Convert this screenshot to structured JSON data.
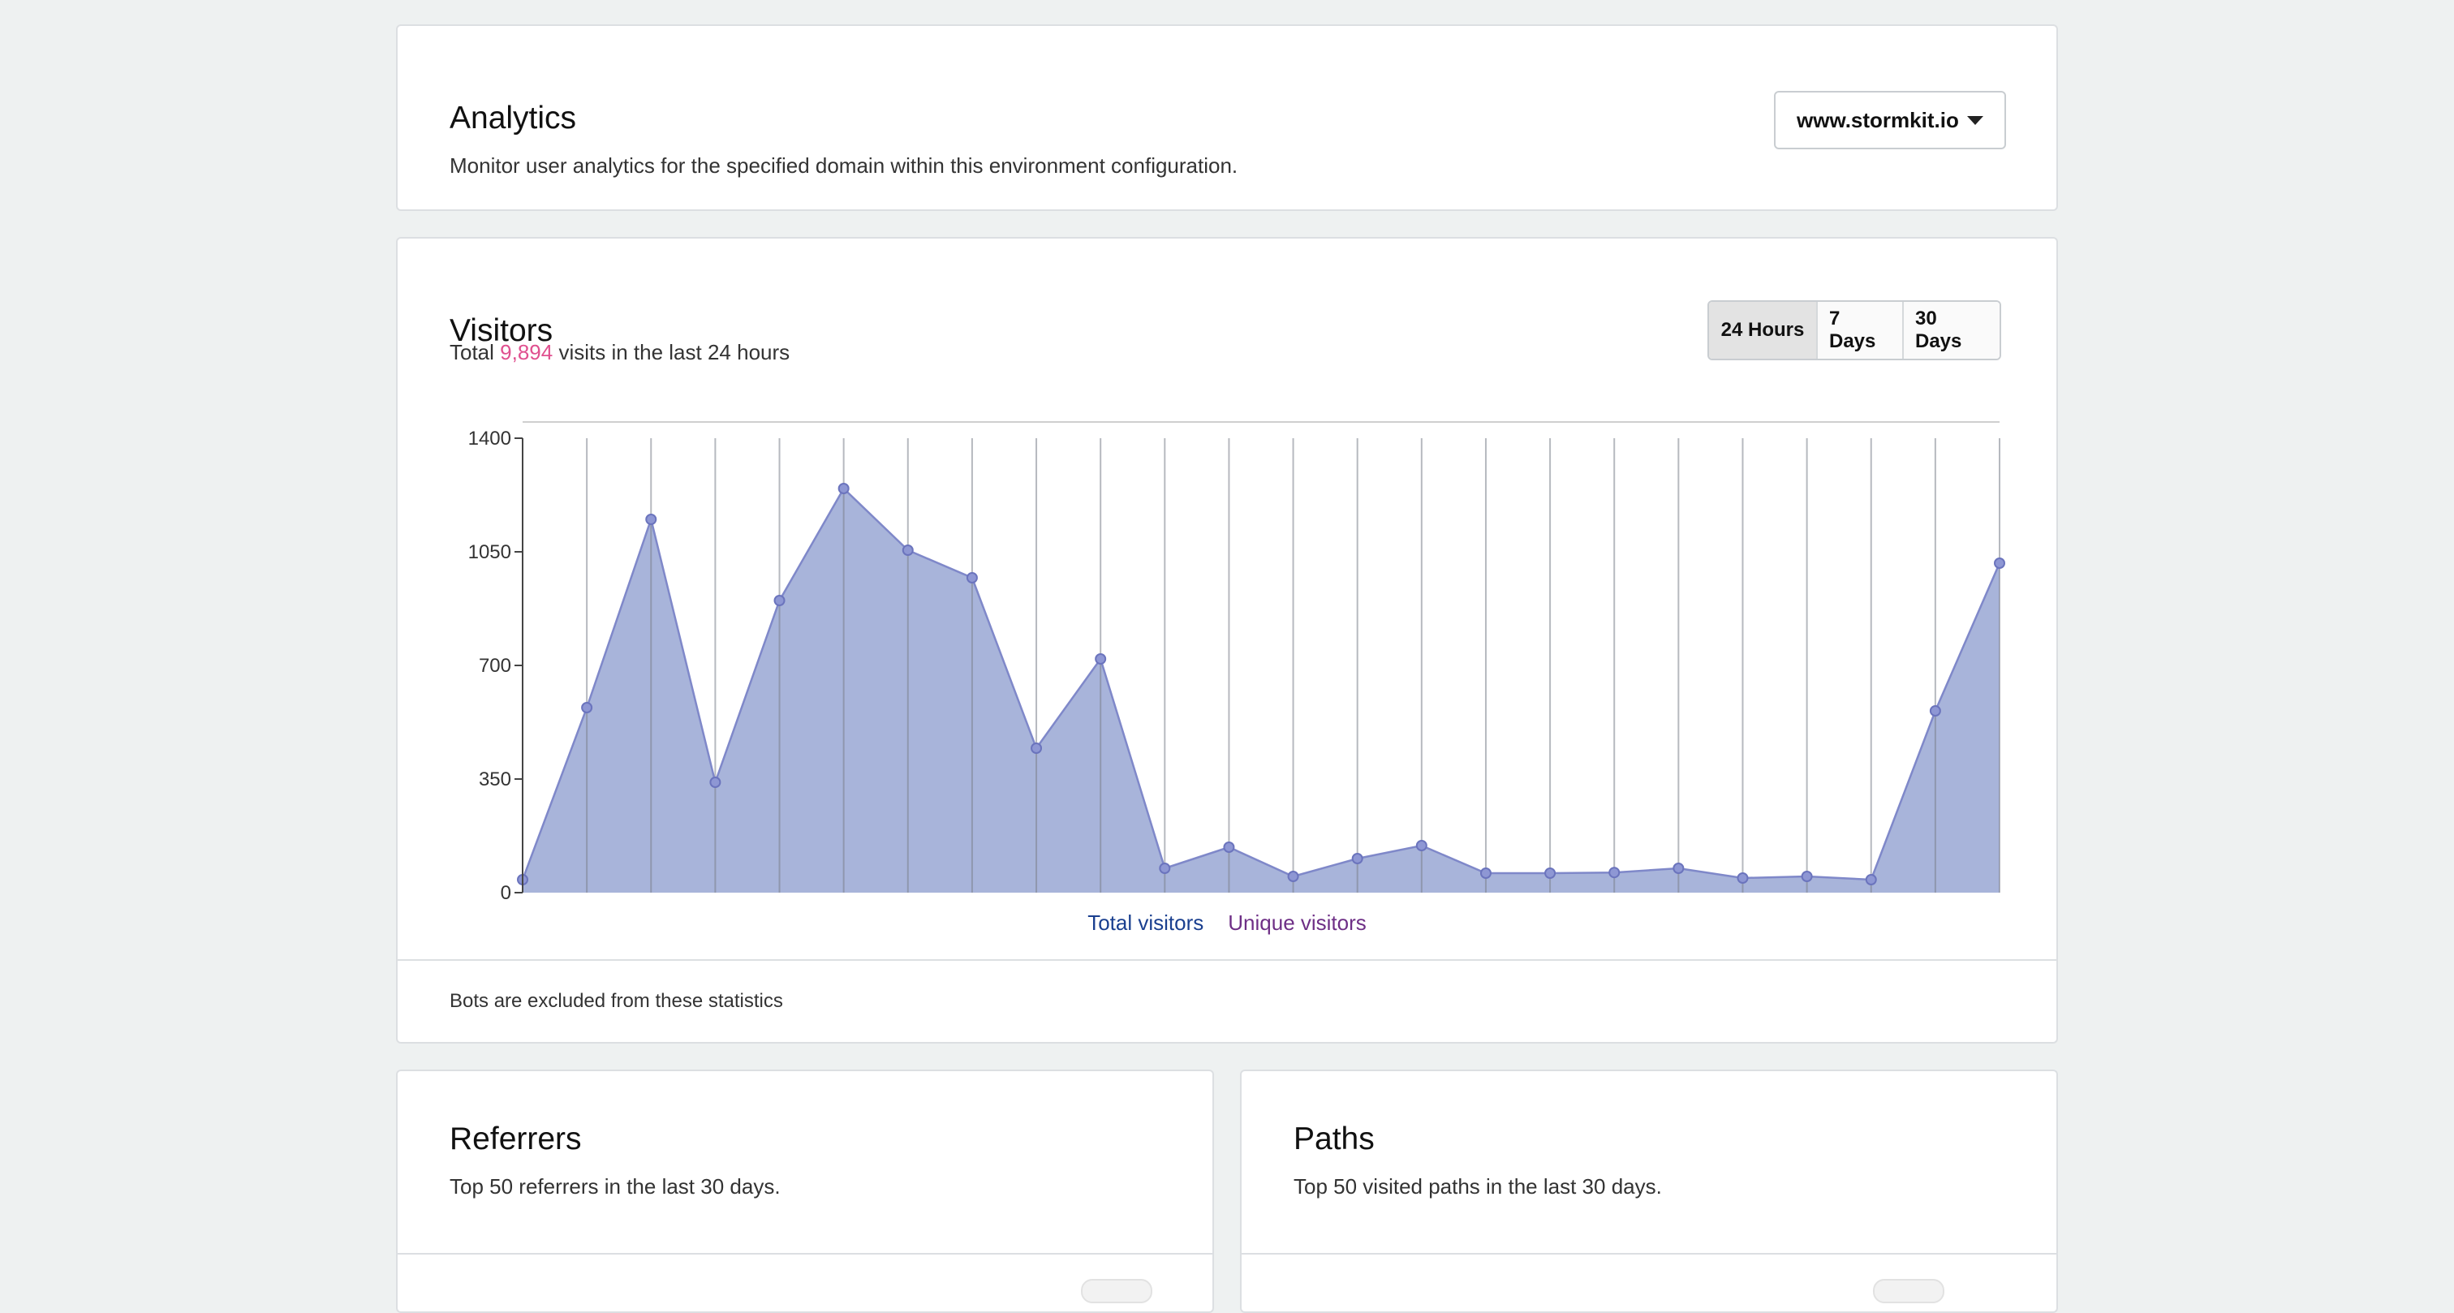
{
  "analytics": {
    "title": "Analytics",
    "subtitle": "Monitor user analytics for the specified domain within this environment configuration.",
    "domain_selected": "www.stormkit.io"
  },
  "visitors": {
    "title": "Visitors",
    "subtitle_prefix": "Total ",
    "total": "9,894",
    "subtitle_suffix": " visits in the last 24 hours",
    "ranges": [
      "24 Hours",
      "7 Days",
      "30 Days"
    ],
    "active_range": "24 Hours",
    "legend": {
      "total": "Total visitors",
      "unique": "Unique visitors"
    },
    "footer": "Bots are excluded from these statistics"
  },
  "referrers": {
    "title": "Referrers",
    "subtitle": "Top 50 referrers in the last 30 days."
  },
  "paths": {
    "title": "Paths",
    "subtitle": "Top 50 visited paths in the last 30 days."
  },
  "colors": {
    "highlight": "#e0508f",
    "area_fill": "#a8b4da",
    "area_stroke": "#7f88c9",
    "legend_total": "#1a3f8f",
    "legend_unique": "#6e2f86"
  },
  "chart_data": {
    "type": "area",
    "ylim": [
      0,
      1400
    ],
    "yticks": [
      "0",
      "350",
      "700",
      "1050",
      "1400"
    ],
    "series": [
      {
        "name": "Total visitors",
        "values": [
          40,
          570,
          1150,
          340,
          900,
          1245,
          1055,
          970,
          445,
          720,
          75,
          140,
          50,
          105,
          145,
          60,
          60,
          62,
          75,
          45,
          50,
          40,
          560,
          1015
        ]
      }
    ]
  }
}
